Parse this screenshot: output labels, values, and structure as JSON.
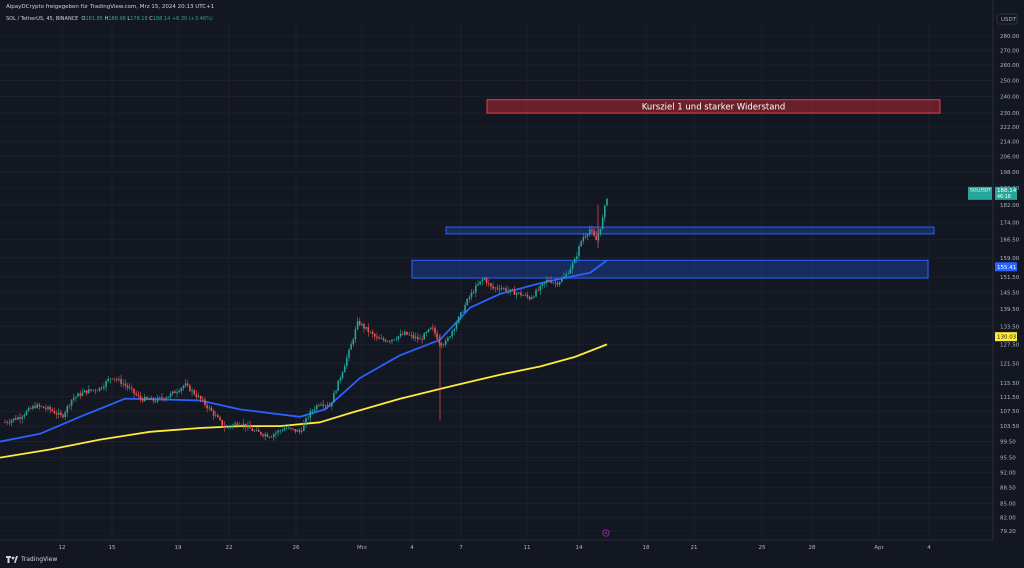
{
  "header": {
    "publisher": "AlpayDCrypto freigegeben für TradingView.com, Mrz 15, 2024 20:13 UTC+1",
    "symbol": "SOL / TetherUS, 45",
    "exchange": "BINANCE",
    "ohlc": {
      "open": "181.85",
      "high": "188.98",
      "low": "178.18",
      "close": "188.14",
      "change": "+6.30 (+3.46%)"
    }
  },
  "currency": "USDT",
  "footer_brand": "TradingView",
  "colors": {
    "background": "#131722",
    "up": "#26a69a",
    "down": "#ef5350",
    "ema_fast": "#2962ff",
    "ema_slow": "#ffeb3b",
    "zone_blue": "#2962ff",
    "zone_red": "#b22833"
  },
  "chart_data": {
    "type": "candlestick",
    "y_axis": {
      "scale": "log",
      "ticks": [
        "280.00",
        "270.00",
        "260.00",
        "250.00",
        "240.00",
        "230.00",
        "222.00",
        "214.00",
        "206.00",
        "198.00",
        "190.00",
        "182.00",
        "174.00",
        "166.50",
        "159.00",
        "151.50",
        "145.50",
        "139.50",
        "133.50",
        "127.50",
        "121.50",
        "115.50",
        "111.50",
        "107.50",
        "103.50",
        "99.50",
        "95.50",
        "92.00",
        "88.50",
        "85.00",
        "82.00",
        "79.20"
      ]
    },
    "x_axis": {
      "ticks": [
        "12",
        "15",
        "19",
        "22",
        "26",
        "Mrz",
        "4",
        "7",
        "11",
        "14",
        "18",
        "21",
        "25",
        "28",
        "Apr",
        "4"
      ]
    },
    "price_labels": [
      {
        "text": "SOLUSDT",
        "value": "188.14",
        "extra": "46:18"
      },
      {
        "value": "155.41"
      },
      {
        "value": "130.03"
      }
    ],
    "zones": [
      {
        "label": "Kursziel 1 und starker Widerstand",
        "top": 238,
        "bottom": 230
      },
      {
        "label": "",
        "top": 172,
        "bottom": 169
      },
      {
        "label": "",
        "top": 158,
        "bottom": 151
      }
    ],
    "series": [
      {
        "name": "",
        "kind": "ema",
        "points": [
          [
            0,
            99.5
          ],
          [
            40,
            101.5
          ],
          [
            80,
            106
          ],
          [
            125,
            111
          ],
          [
            160,
            110.8
          ],
          [
            200,
            110.5
          ],
          [
            240,
            108
          ],
          [
            270,
            107
          ],
          [
            300,
            106
          ],
          [
            325,
            108
          ],
          [
            360,
            117
          ],
          [
            400,
            124
          ],
          [
            440,
            129
          ],
          [
            470,
            140
          ],
          [
            500,
            145
          ],
          [
            540,
            149
          ],
          [
            570,
            151.5
          ],
          [
            590,
            153
          ],
          [
            607,
            158
          ]
        ]
      },
      {
        "name": "",
        "kind": "ema",
        "points": [
          [
            0,
            95.5
          ],
          [
            50,
            97.5
          ],
          [
            100,
            100
          ],
          [
            150,
            102
          ],
          [
            200,
            103
          ],
          [
            240,
            103.5
          ],
          [
            280,
            103.5
          ],
          [
            320,
            104.5
          ],
          [
            350,
            107
          ],
          [
            400,
            111
          ],
          [
            450,
            114.5
          ],
          [
            500,
            118
          ],
          [
            540,
            120.5
          ],
          [
            575,
            123.5
          ],
          [
            607,
            127.5
          ]
        ]
      },
      {
        "name": "",
        "kind": "candles",
        "path": [
          [
            5,
            104.5
          ],
          [
            20,
            106
          ],
          [
            35,
            109
          ],
          [
            50,
            108
          ],
          [
            62,
            106
          ],
          [
            72,
            111
          ],
          [
            85,
            113
          ],
          [
            100,
            114
          ],
          [
            112,
            117.5
          ],
          [
            125,
            115
          ],
          [
            140,
            111
          ],
          [
            155,
            110.5
          ],
          [
            170,
            112
          ],
          [
            185,
            115
          ],
          [
            200,
            111
          ],
          [
            213,
            107
          ],
          [
            225,
            103
          ],
          [
            240,
            104.5
          ],
          [
            255,
            102
          ],
          [
            270,
            101
          ],
          [
            285,
            103
          ],
          [
            300,
            102
          ],
          [
            310,
            107
          ],
          [
            320,
            110
          ],
          [
            330,
            109
          ],
          [
            340,
            117
          ],
          [
            350,
            126
          ],
          [
            358,
            135
          ],
          [
            368,
            132
          ],
          [
            378,
            129
          ],
          [
            390,
            129
          ],
          [
            405,
            131
          ],
          [
            420,
            129
          ],
          [
            432,
            133
          ],
          [
            440,
            128
          ],
          [
            446,
            128
          ],
          [
            452,
            132
          ],
          [
            460,
            137
          ],
          [
            468,
            143
          ],
          [
            476,
            147.5
          ],
          [
            484,
            151
          ],
          [
            492,
            147
          ],
          [
            500,
            147.5
          ],
          [
            510,
            146
          ],
          [
            520,
            145
          ],
          [
            530,
            143.5
          ],
          [
            540,
            147
          ],
          [
            548,
            150.5
          ],
          [
            556,
            149
          ],
          [
            565,
            151.5
          ],
          [
            575,
            158
          ],
          [
            582,
            167
          ],
          [
            590,
            171
          ],
          [
            596,
            166
          ],
          [
            602,
            174
          ],
          [
            608,
            188.14
          ]
        ]
      }
    ]
  }
}
